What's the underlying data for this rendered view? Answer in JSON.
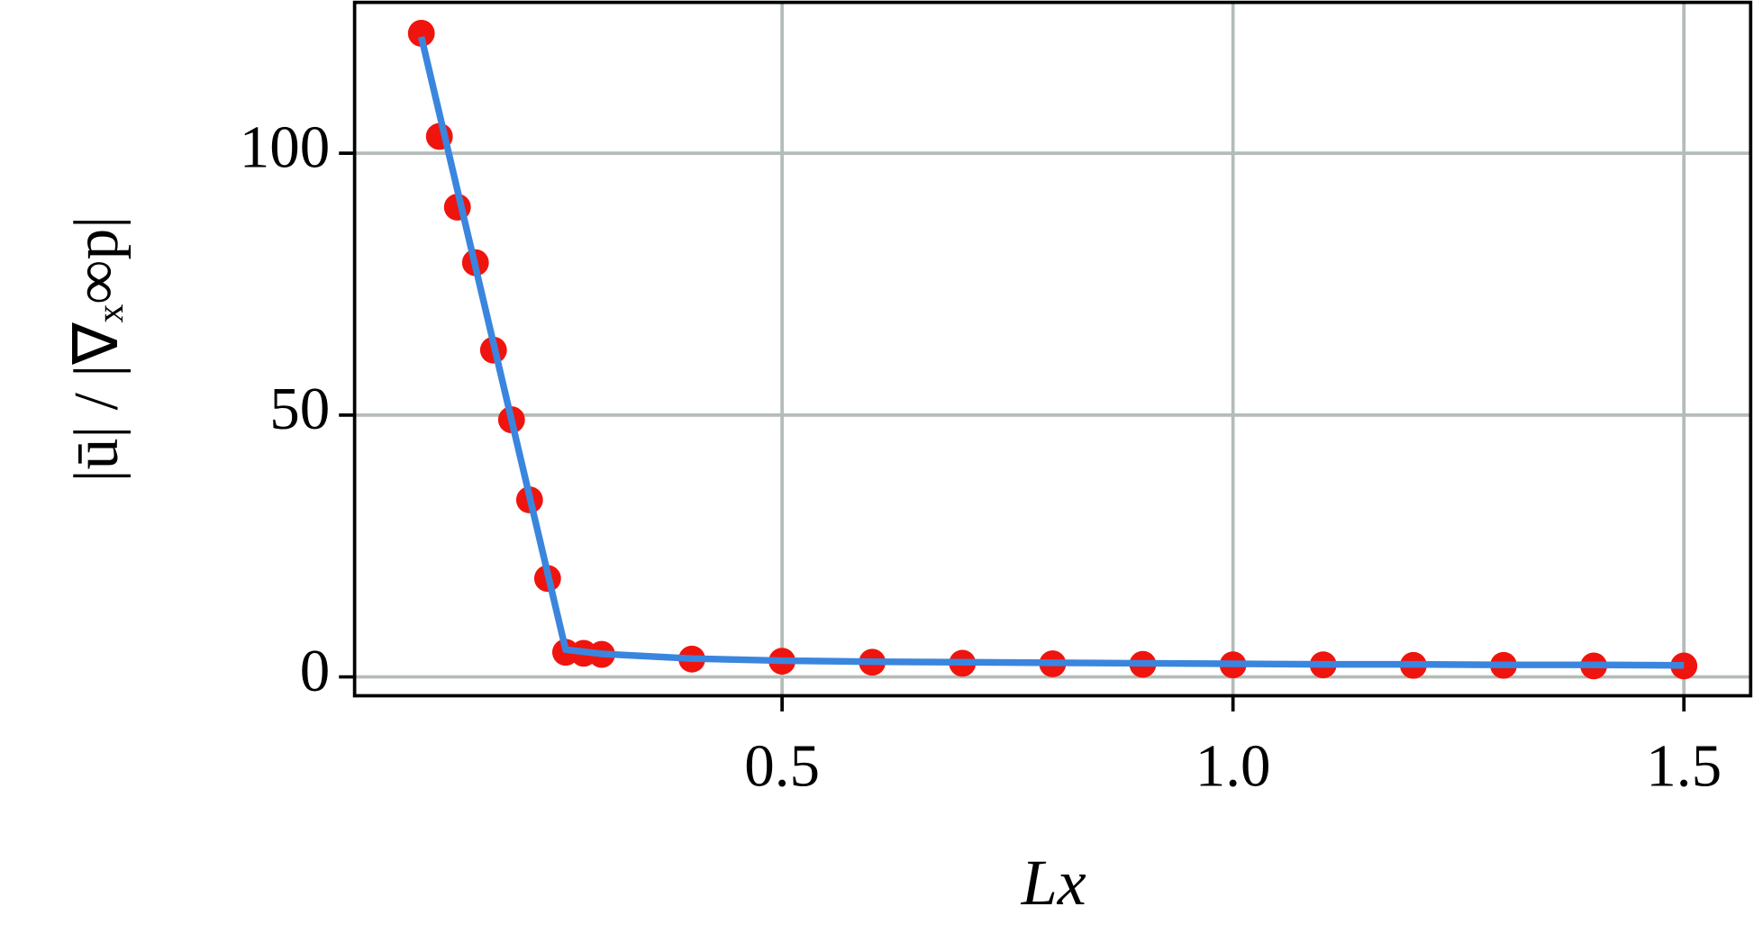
{
  "chart_data": {
    "type": "scatter",
    "x_label": "Lx",
    "y_label": "|ū| / |∇ₓ∞p|",
    "xlim": [
      0.026,
      1.574
    ],
    "ylim": [
      -3.6,
      128.8
    ],
    "xticks": [
      0.5,
      {
        "value": 1,
        "label": "1.0"
      },
      1.5
    ],
    "yticks": [
      0,
      50,
      100
    ],
    "grid": true,
    "series": [
      {
        "mode": "line",
        "color": "#3a86de",
        "x": [
          0.1,
          0.26,
          0.3,
          0.4,
          0.5,
          0.6,
          0.7,
          0.8,
          0.9,
          1.0,
          1.1,
          1.2,
          1.3,
          1.4,
          1.5
        ],
        "values": [
          122.2,
          5.2,
          4.4,
          3.5,
          3.1,
          2.9,
          2.8,
          2.7,
          2.6,
          2.5,
          2.4,
          2.4,
          2.3,
          2.3,
          2.2
        ]
      },
      {
        "mode": "markers",
        "color": "#f0140e",
        "x": [
          0.1,
          0.12,
          0.14,
          0.16,
          0.18,
          0.2,
          0.22,
          0.24,
          0.26,
          0.28,
          0.3,
          0.4,
          0.5,
          0.6,
          0.7,
          0.8,
          0.9,
          1.0,
          1.1,
          1.2,
          1.3,
          1.4,
          1.5
        ],
        "values": [
          122.9,
          103.2,
          89.7,
          79.1,
          62.4,
          49.1,
          33.8,
          18.8,
          4.7,
          4.5,
          4.3,
          3.4,
          3.0,
          2.8,
          2.6,
          2.5,
          2.4,
          2.3,
          2.3,
          2.2,
          2.2,
          2.1,
          2.1
        ]
      }
    ]
  }
}
